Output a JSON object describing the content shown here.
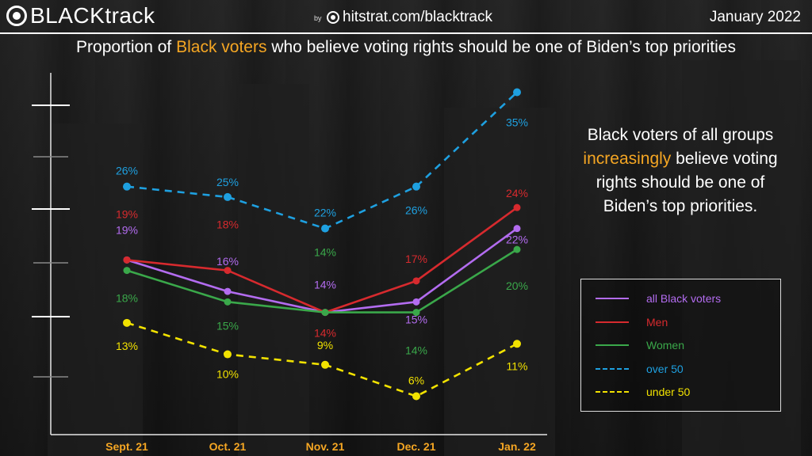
{
  "header": {
    "logo_text": "BLACKtrack",
    "by_label": "by",
    "site": "hitstrat.com/blacktrack",
    "date": "January 2022"
  },
  "title": {
    "before": "Proportion of ",
    "highlight": "Black voters",
    "after": " who believe voting rights should be one of Biden’s top priorities"
  },
  "callout": {
    "before": "Black voters of all groups ",
    "highlight": "increasingly",
    "after": " believe voting rights should be one of Biden’s top priorities."
  },
  "colors": {
    "accent": "#f5a623",
    "all": "#b36cf0",
    "men": "#d72a2e",
    "women": "#3aa84a",
    "over50": "#1ea0e0",
    "under50": "#f2e200"
  },
  "chart_data": {
    "type": "line",
    "title": "",
    "xlabel": "",
    "ylabel": "",
    "categories": [
      "Sept. 21",
      "Oct. 21",
      "Nov. 21",
      "Dec. 21",
      "Jan. 22"
    ],
    "ylim": [
      4,
      37
    ],
    "grid": false,
    "legend_position": "right",
    "series": [
      {
        "name": "all Black voters",
        "values": [
          19,
          16,
          14,
          15,
          22
        ],
        "color": "#b36cf0",
        "dash": false
      },
      {
        "name": "Men",
        "values": [
          19,
          18,
          14,
          17,
          24
        ],
        "color": "#d72a2e",
        "dash": false
      },
      {
        "name": "Women",
        "values": [
          18,
          15,
          14,
          14,
          20
        ],
        "color": "#3aa84a",
        "dash": false
      },
      {
        "name": "over 50",
        "values": [
          26,
          25,
          22,
          26,
          35
        ],
        "color": "#1ea0e0",
        "dash": true
      },
      {
        "name": "under 50",
        "values": [
          13,
          10,
          9,
          6,
          11
        ],
        "color": "#f2e200",
        "dash": true
      }
    ],
    "data_labels": [
      [
        "19%",
        "16%",
        "14%",
        "15%",
        "22%"
      ],
      [
        "19%",
        "18%",
        "14%",
        "17%",
        "24%"
      ],
      [
        "18%",
        "15%",
        "14%",
        "14%",
        "20%"
      ],
      [
        "26%",
        "25%",
        "22%",
        "26%",
        "35%"
      ],
      [
        "13%",
        "10%",
        "9%",
        "6%",
        "11%"
      ]
    ]
  }
}
